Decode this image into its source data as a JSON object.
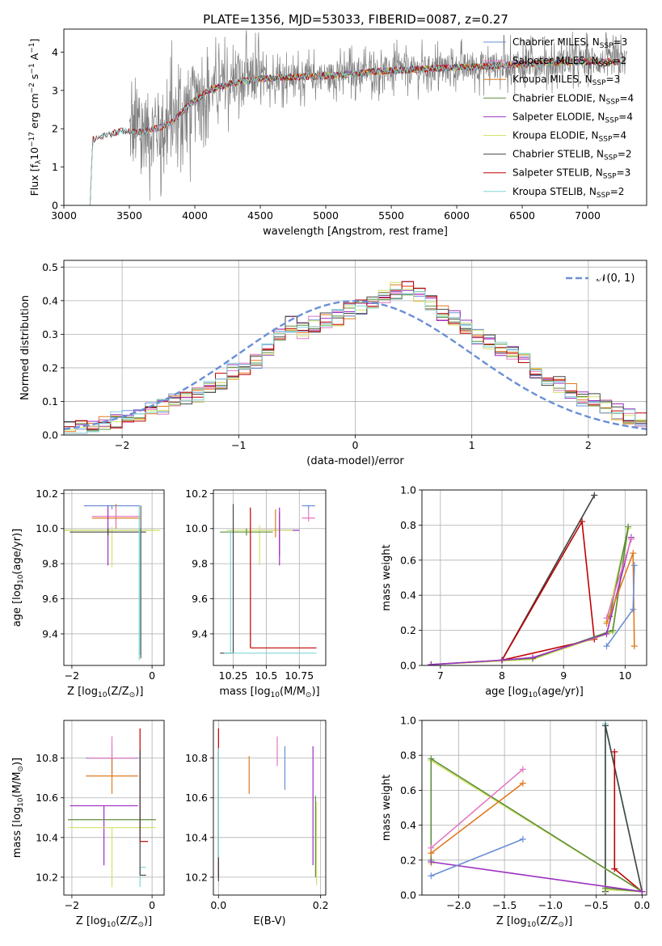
{
  "figure": {
    "title": "PLATE=1356, MJD=53033, FIBERID=0087, z=0.27"
  },
  "colors": {
    "Chabrier MILES": "#6a8fd6",
    "Salpeter MILES": "#e377c2",
    "Kroupa MILES": "#e07a1f",
    "Chabrier ELODIE": "#5f8f3e",
    "Salpeter ELODIE": "#9b30c0",
    "Kroupa ELODIE": "#d4e36a",
    "Chabrier STELIB": "#444444",
    "Salpeter STELIB": "#c00000",
    "Kroupa STELIB": "#7fd6d6",
    "data": "#808080",
    "gaussian": "#6a8fd6"
  },
  "chart_data": [
    {
      "id": "spectrum",
      "type": "line",
      "title": "PLATE=1356, MJD=53033, FIBERID=0087, z=0.27",
      "xlabel": "wavelength [Angstrom, rest frame]",
      "ylabel": "Flux [f_λ 10^-17 erg cm^-2 s^-1 A^-1]",
      "xlim": [
        3000,
        7450
      ],
      "ylim": [
        0,
        4.6
      ],
      "xticks": [
        3000,
        3500,
        4000,
        4500,
        5000,
        5500,
        6000,
        6500,
        7000
      ],
      "yticks": [
        0,
        1,
        2,
        3,
        4
      ],
      "grid": false,
      "legend_position": "top-right",
      "legend": [
        {
          "label": "Chabrier MILES, N",
          "sub": "SSP",
          "suffix": "=3",
          "key": "Chabrier MILES"
        },
        {
          "label": "Salpeter MILES, N",
          "sub": "SSP",
          "suffix": "=2",
          "key": "Salpeter MILES"
        },
        {
          "label": "Kroupa MILES, N",
          "sub": "SSP",
          "suffix": "=3",
          "key": "Kroupa MILES"
        },
        {
          "label": "Chabrier ELODIE, N",
          "sub": "SSP",
          "suffix": "=4",
          "key": "Chabrier ELODIE"
        },
        {
          "label": "Salpeter ELODIE, N",
          "sub": "SSP",
          "suffix": "=4",
          "key": "Salpeter ELODIE"
        },
        {
          "label": "Kroupa ELODIE, N",
          "sub": "SSP",
          "suffix": "=4",
          "key": "Kroupa ELODIE"
        },
        {
          "label": "Chabrier STELIB, N",
          "sub": "SSP",
          "suffix": "=2",
          "key": "Chabrier STELIB"
        },
        {
          "label": "Salpeter STELIB, N",
          "sub": "SSP",
          "suffix": "=3",
          "key": "Salpeter STELIB"
        },
        {
          "label": "Kroupa STELIB, N",
          "sub": "SSP",
          "suffix": "=2",
          "key": "Kroupa STELIB"
        }
      ],
      "continuum": {
        "x": [
          3200,
          3450,
          3550,
          3700,
          3800,
          3950,
          4100,
          4300,
          4500,
          4800,
          5100,
          5400,
          5700,
          6000,
          6300,
          6600,
          6900,
          7200
        ],
        "y": [
          1.7,
          1.95,
          1.9,
          2.0,
          2.1,
          2.6,
          3.0,
          3.2,
          3.3,
          3.35,
          3.4,
          3.5,
          3.55,
          3.6,
          3.65,
          3.7,
          3.75,
          3.75
        ]
      },
      "model_starts": {
        "Chabrier MILES": 3540,
        "Salpeter MILES": 3540,
        "Kroupa MILES": 3540,
        "Chabrier ELODIE": 3900,
        "Salpeter ELODIE": 3900,
        "Kroupa ELODIE": 3900,
        "Chabrier STELIB": 3200,
        "Salpeter STELIB": 3200,
        "Kroupa STELIB": 3200
      },
      "data_range": [
        3500,
        7300
      ]
    },
    {
      "id": "residuals",
      "type": "bar",
      "xlabel": "(data-model)/error",
      "ylabel": "Normed distribution",
      "xlim": [
        -2.5,
        2.5
      ],
      "ylim": [
        0,
        0.52
      ],
      "xticks": [
        -2,
        -1,
        0,
        1,
        2
      ],
      "yticks": [
        0.0,
        0.1,
        0.2,
        0.3,
        0.4,
        0.5
      ],
      "grid": true,
      "legend_position": "top-right",
      "gaussian_label": "𝒩(0, 1)",
      "bin_width": 0.1,
      "bin_start": -2.5,
      "base_hist": [
        0.02,
        0.025,
        0.03,
        0.035,
        0.045,
        0.055,
        0.06,
        0.075,
        0.085,
        0.1,
        0.11,
        0.12,
        0.145,
        0.16,
        0.19,
        0.2,
        0.22,
        0.26,
        0.3,
        0.33,
        0.31,
        0.33,
        0.34,
        0.35,
        0.37,
        0.38,
        0.39,
        0.41,
        0.43,
        0.44,
        0.42,
        0.39,
        0.36,
        0.35,
        0.32,
        0.29,
        0.28,
        0.26,
        0.24,
        0.22,
        0.19,
        0.17,
        0.15,
        0.13,
        0.11,
        0.1,
        0.08,
        0.07,
        0.055,
        0.045,
        0.04,
        0.035,
        0.03,
        0.025,
        0.02
      ]
    },
    {
      "id": "age_vs_Z",
      "type": "scatter",
      "xlabel": "Z [log10(Z/Z⊙)]",
      "ylabel": "age [log10(age/yr)]",
      "xlim": [
        -2.2,
        0.3
      ],
      "ylim": [
        9.22,
        10.22
      ],
      "xticks": [
        -2,
        0
      ],
      "yticks": [
        9.4,
        9.6,
        9.8,
        10.0,
        10.2
      ],
      "grid": true,
      "errorbars": [
        {
          "key": "Chabrier MILES",
          "x": -1.0,
          "xerr": [
            0.7,
            0.7
          ],
          "y": 10.13,
          "yerr": [
            0.02,
            0.0
          ]
        },
        {
          "key": "Kroupa MILES",
          "x": -0.9,
          "xerr": [
            0.6,
            0.6
          ],
          "y": 10.06,
          "yerr": [
            0.06,
            0.08
          ]
        },
        {
          "key": "Salpeter MILES",
          "x": -0.9,
          "xerr": [
            0.6,
            0.6
          ],
          "y": 10.07,
          "yerr": [
            0.06,
            0.05
          ]
        },
        {
          "key": "Chabrier ELODIE",
          "x": -1.1,
          "xerr": [
            1.2,
            1.2
          ],
          "y": 9.99,
          "yerr": [
            0.02,
            0.02
          ]
        },
        {
          "key": "Kroupa ELODIE",
          "x": -1.0,
          "xerr": [
            1.2,
            1.2
          ],
          "y": 9.99,
          "yerr": [
            0.21,
            0.02
          ]
        },
        {
          "key": "Salpeter ELODIE",
          "x": -1.1,
          "xerr": [
            0.0,
            0.0
          ],
          "y": 9.99,
          "yerr": [
            0.2,
            0.14
          ]
        },
        {
          "key": "Chabrier STELIB",
          "x": -1.1,
          "xerr": [
            0.95,
            0.95
          ],
          "y": 9.98,
          "yerr": [
            0.02,
            0.02
          ]
        },
        {
          "key": "Kroupa STELIB",
          "x": -0.3,
          "xerr": [
            0.0,
            0.0
          ],
          "y": 9.28,
          "yerr": [
            0.0,
            0.72
          ]
        },
        {
          "key": "Salpeter STELIB",
          "x": -0.3,
          "xerr": [
            0.0,
            0.0
          ],
          "y": 9.32,
          "yerr": [
            0.0,
            0.0
          ]
        }
      ]
    },
    {
      "id": "age_vs_mass",
      "type": "scatter",
      "xlabel": "mass [log10(M/M⊙)]",
      "ylabel": "",
      "xlim": [
        10.1,
        10.95
      ],
      "ylim": [
        9.22,
        10.22
      ],
      "xticks": [
        10.25,
        10.5,
        10.75
      ],
      "yticks": [
        9.4,
        9.6,
        9.8,
        10.0,
        10.2
      ],
      "grid": true
    },
    {
      "id": "massweight_vs_age",
      "type": "line",
      "xlabel": "age [log10(age/yr)]",
      "ylabel": "mass weight",
      "xlim": [
        6.7,
        10.35
      ],
      "ylim": [
        0,
        1
      ],
      "xticks": [
        7,
        8,
        9,
        10
      ],
      "yticks": [
        0.0,
        0.2,
        0.4,
        0.6,
        0.8,
        1.0
      ],
      "grid": true,
      "series": [
        {
          "key": "Kroupa STELIB",
          "x": [
            8.0,
            9.5
          ],
          "y": [
            0.03,
            0.97
          ]
        },
        {
          "key": "Chabrier STELIB",
          "x": [
            8.0,
            9.5
          ],
          "y": [
            0.03,
            0.97
          ]
        },
        {
          "key": "Salpeter STELIB",
          "x": [
            8.0,
            9.3,
            9.5,
            8.0
          ],
          "y": [
            0.03,
            0.82,
            0.15,
            0.03
          ]
        },
        {
          "key": "Kroupa ELODIE",
          "x": [
            6.85,
            8.0,
            8.5,
            9.8,
            10.05,
            9.7
          ],
          "y": [
            0.005,
            0.025,
            0.035,
            0.19,
            0.78,
            0.25
          ]
        },
        {
          "key": "Chabrier ELODIE",
          "x": [
            6.85,
            8.0,
            8.5,
            9.8,
            10.05,
            9.75
          ],
          "y": [
            0.005,
            0.03,
            0.04,
            0.2,
            0.79,
            0.28
          ]
        },
        {
          "key": "Salpeter ELODIE",
          "x": [
            6.85,
            8.0,
            8.5,
            9.7,
            10.1
          ],
          "y": [
            0.005,
            0.03,
            0.045,
            0.18,
            0.73
          ]
        },
        {
          "key": "Salpeter MILES",
          "x": [
            9.7,
            10.1
          ],
          "y": [
            0.27,
            0.72
          ]
        },
        {
          "key": "Kroupa MILES",
          "x": [
            9.7,
            10.13,
            10.15
          ],
          "y": [
            0.24,
            0.64,
            0.11
          ]
        },
        {
          "key": "Chabrier MILES",
          "x": [
            9.7,
            10.13,
            10.15
          ],
          "y": [
            0.11,
            0.32,
            0.57
          ]
        }
      ]
    },
    {
      "id": "mass_vs_Z",
      "type": "scatter",
      "xlabel": "Z [log10(Z/Z⊙)]",
      "ylabel": "mass [log10(M/M⊙)]",
      "xlim": [
        -2.2,
        0.3
      ],
      "ylim": [
        10.11,
        10.99
      ],
      "xticks": [
        -2,
        0
      ],
      "yticks": [
        10.2,
        10.4,
        10.6,
        10.8
      ],
      "grid": true
    },
    {
      "id": "mass_vs_ebv",
      "type": "scatter",
      "xlabel": "E(B-V)",
      "ylabel": "",
      "xlim": [
        -0.01,
        0.21
      ],
      "ylim": [
        10.11,
        10.99
      ],
      "xticks": [
        0.0,
        0.2
      ],
      "yticks": [
        10.2,
        10.4,
        10.6,
        10.8
      ],
      "grid": true
    },
    {
      "id": "massweight_vs_Z",
      "type": "line",
      "xlabel": "Z [log10(Z/Z⊙)]",
      "ylabel": "mass weight",
      "xlim": [
        -2.4,
        0.05
      ],
      "ylim": [
        0,
        1
      ],
      "xticks": [
        -2.0,
        -1.5,
        -1.0,
        -0.5,
        0.0
      ],
      "yticks": [
        0.0,
        0.2,
        0.4,
        0.6,
        0.8,
        1.0
      ],
      "grid": true,
      "series": [
        {
          "key": "Kroupa STELIB",
          "x": [
            -0.4,
            -0.4,
            0.0
          ],
          "y": [
            0.02,
            0.98,
            0.02
          ]
        },
        {
          "key": "Chabrier STELIB",
          "x": [
            -0.4,
            -0.4,
            0.0
          ],
          "y": [
            0.02,
            0.97,
            0.02
          ]
        },
        {
          "key": "Salpeter STELIB",
          "x": [
            -0.3,
            -0.3,
            0.0
          ],
          "y": [
            0.82,
            0.15,
            0.02
          ]
        },
        {
          "key": "Kroupa ELODIE",
          "x": [
            -2.3,
            -2.3,
            0.0,
            -0.4
          ],
          "y": [
            0.18,
            0.77,
            0.02,
            0.03
          ]
        },
        {
          "key": "Chabrier ELODIE",
          "x": [
            -2.3,
            -2.3,
            0.0,
            -0.4
          ],
          "y": [
            0.2,
            0.78,
            0.02,
            0.04
          ]
        },
        {
          "key": "Salpeter ELODIE",
          "x": [
            -2.3,
            0.0
          ],
          "y": [
            0.19,
            0.02
          ]
        },
        {
          "key": "Salpeter MILES",
          "x": [
            -2.3,
            -1.3
          ],
          "y": [
            0.27,
            0.72
          ]
        },
        {
          "key": "Kroupa MILES",
          "x": [
            -2.3,
            -1.3
          ],
          "y": [
            0.24,
            0.64
          ]
        },
        {
          "key": "Chabrier MILES",
          "x": [
            -2.3,
            -1.3
          ],
          "y": [
            0.11,
            0.32
          ]
        }
      ]
    }
  ]
}
